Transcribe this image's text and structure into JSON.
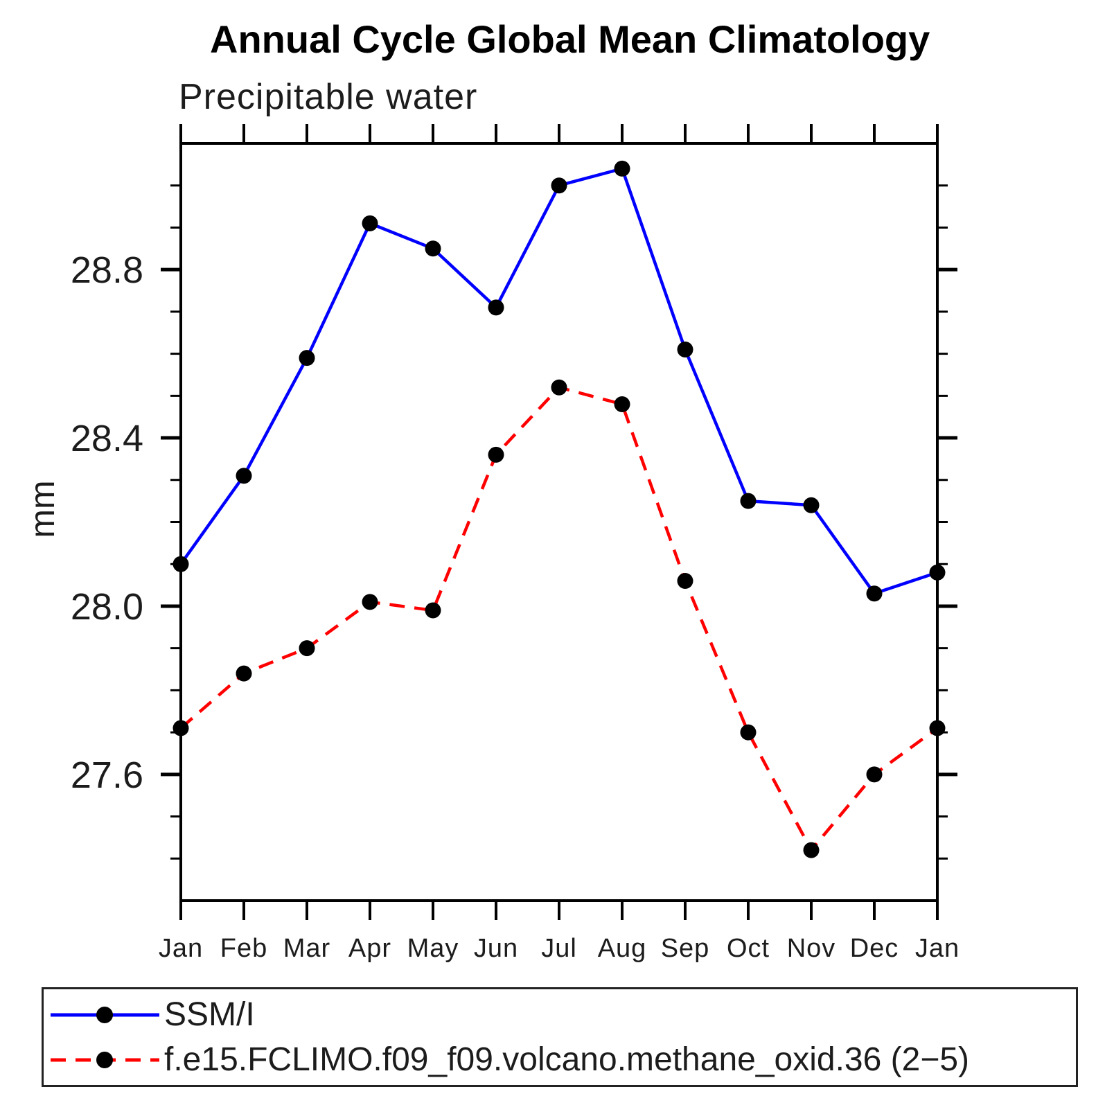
{
  "title": "Annual Cycle Global Mean Climatology",
  "subtitle": "Precipitable water",
  "colors": {
    "ssmi_line": "#0000ff",
    "model_line": "#ff0000",
    "marker": "#000000",
    "axis": "#000000",
    "text": "#1c1c1c"
  },
  "legend": {
    "entries": [
      {
        "label": "SSM/I",
        "style": "solid",
        "color": "#0000ff"
      },
      {
        "label": "f.e15.FCLIMO.f09_f09.volcano.methane_oxid.36 (2−5)",
        "style": "dashed",
        "color": "#ff0000"
      }
    ]
  },
  "chart_data": {
    "type": "line",
    "title": "Annual Cycle Global Mean Climatology",
    "subtitle": "Precipitable water",
    "ylabel": "mm",
    "xlabel": "",
    "categories": [
      "Jan",
      "Feb",
      "Mar",
      "Apr",
      "May",
      "Jun",
      "Jul",
      "Aug",
      "Sep",
      "Oct",
      "Nov",
      "Dec",
      "Jan"
    ],
    "series": [
      {
        "name": "SSM/I",
        "color": "#0000ff",
        "line_style": "solid",
        "marker": "circle",
        "values": [
          28.1,
          28.31,
          28.59,
          28.91,
          28.85,
          28.71,
          29.0,
          29.04,
          28.61,
          28.25,
          28.24,
          28.03,
          28.08
        ]
      },
      {
        "name": "f.e15.FCLIMO.f09_f09.volcano.methane_oxid.36 (2−5)",
        "color": "#ff0000",
        "line_style": "dashed",
        "marker": "circle",
        "values": [
          27.71,
          27.84,
          27.9,
          28.01,
          27.99,
          28.36,
          28.52,
          28.48,
          28.06,
          27.7,
          27.42,
          27.6,
          27.71
        ]
      }
    ],
    "ylim": [
      27.3,
      29.1
    ],
    "y_major_ticks": [
      27.6,
      28.0,
      28.4,
      28.8
    ],
    "y_major_tick_labels": [
      "27.6",
      "28.0",
      "28.4",
      "28.8"
    ],
    "y_minor_step": 0.1,
    "grid": false,
    "legend_position": "bottom"
  }
}
